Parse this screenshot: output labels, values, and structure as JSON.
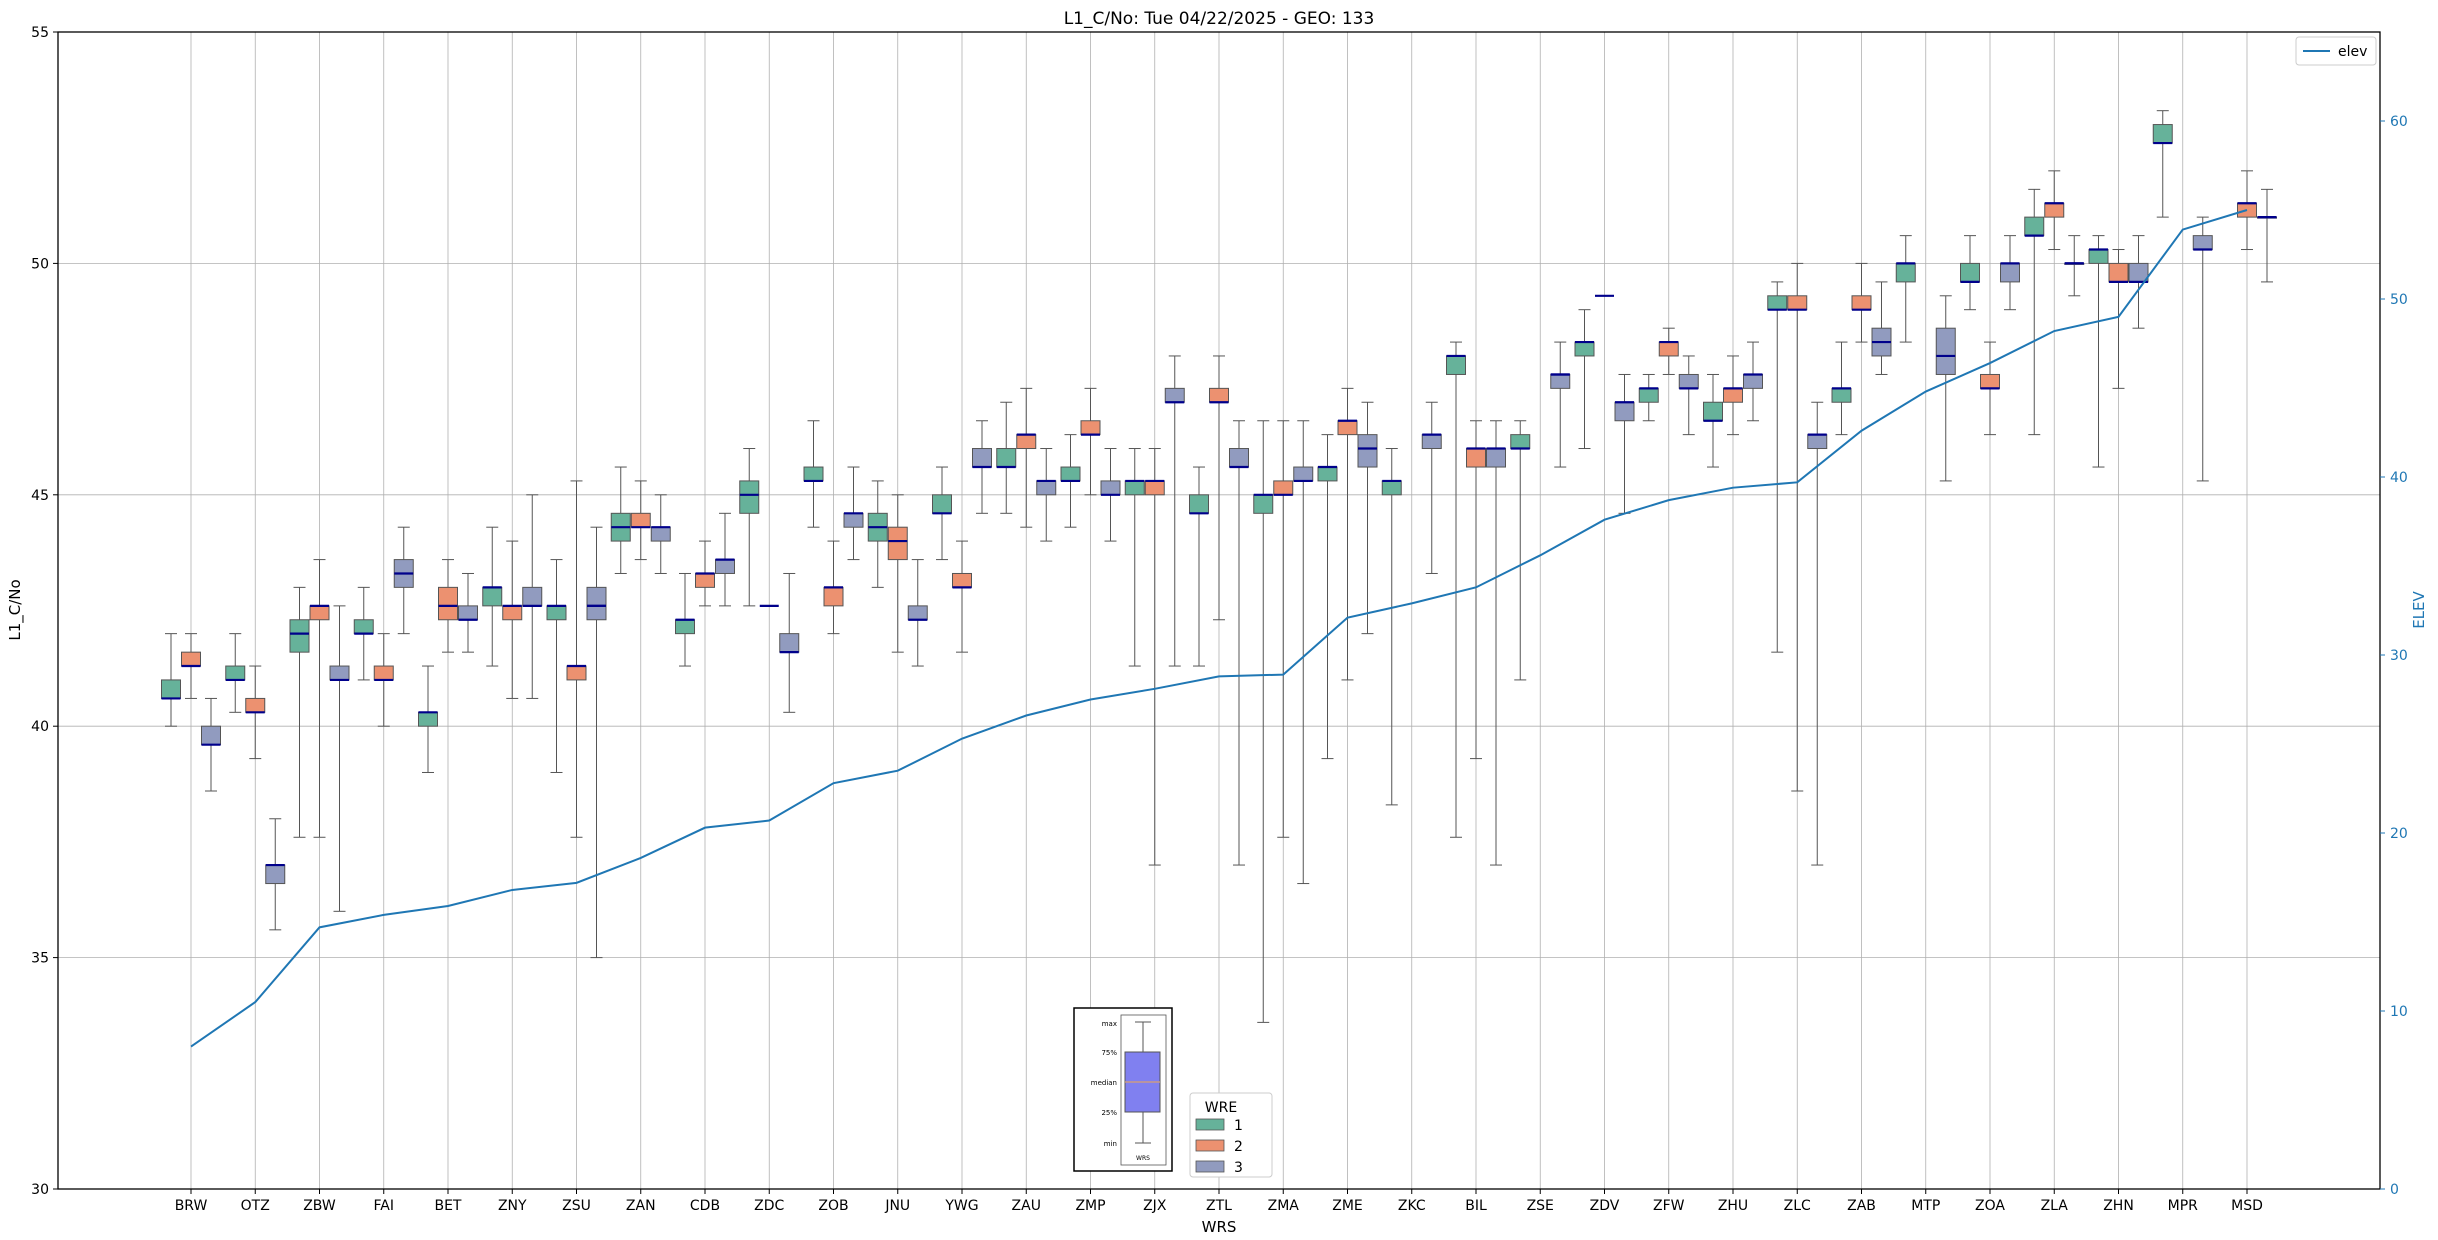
{
  "chart_data": {
    "type": "box",
    "title": "L1_C/No: Tue 04/22/2025 - GEO: 133",
    "xlabel": "WRS",
    "ylabel": "L1_C/No",
    "y2label": "ELEV",
    "ylim": [
      30,
      55
    ],
    "y2lim": [
      0,
      65
    ],
    "yticks": [
      30,
      35,
      40,
      45,
      50,
      55
    ],
    "y2ticks": [
      0,
      10,
      20,
      30,
      40,
      50,
      60
    ],
    "grid": true,
    "categories": [
      "BRW",
      "OTZ",
      "ZBW",
      "FAI",
      "BET",
      "ZNY",
      "ZSU",
      "ZAN",
      "CDB",
      "ZDC",
      "ZOB",
      "JNU",
      "YWG",
      "ZAU",
      "ZMP",
      "ZJX",
      "ZTL",
      "ZMA",
      "ZME",
      "ZKC",
      "BIL",
      "ZSE",
      "ZDV",
      "ZFW",
      "ZHU",
      "ZLC",
      "ZAB",
      "MTP",
      "ZOA",
      "ZLA",
      "ZHN",
      "MPR",
      "MSD"
    ],
    "legend": {
      "title": "WRE",
      "labels": [
        "1",
        "2",
        "3"
      ],
      "colors": [
        "#66b29a",
        "#ec9170",
        "#919bbf"
      ]
    },
    "line_legend": {
      "label": "elev",
      "color": "#1f77b4"
    },
    "box_key": {
      "labels": [
        "max",
        "75%",
        "median",
        "25%",
        "min"
      ],
      "xlabel": "WRS"
    },
    "series": [
      {
        "name": "1",
        "boxes": [
          [
            40,
            40.6,
            40.6,
            41,
            42
          ],
          [
            40.3,
            41,
            41,
            41.3,
            42
          ],
          [
            37.6,
            41.6,
            42,
            42.3,
            43
          ],
          [
            41,
            42,
            42,
            42.3,
            43
          ],
          [
            39,
            40,
            40.3,
            40.3,
            41.3
          ],
          [
            41.3,
            42.6,
            43,
            43,
            44.3
          ],
          [
            39,
            42.3,
            42.6,
            42.6,
            43.6
          ],
          [
            43.3,
            44,
            44.3,
            44.6,
            45.6
          ],
          [
            41.3,
            42,
            42.3,
            42.3,
            43.3
          ],
          [
            42.6,
            44.6,
            45,
            45.3,
            46
          ],
          [
            44.3,
            45.3,
            45.3,
            45.6,
            46.6
          ],
          [
            43,
            44,
            44.3,
            44.6,
            45.3
          ],
          [
            43.6,
            44.6,
            44.6,
            45,
            45.6
          ],
          [
            44.6,
            45.6,
            45.6,
            46,
            47
          ],
          [
            44.3,
            45.3,
            45.3,
            45.6,
            46.3
          ],
          [
            41.3,
            45,
            45.3,
            45.3,
            46
          ],
          [
            41.3,
            44.6,
            44.6,
            45,
            45.6
          ],
          [
            33.6,
            44.6,
            45,
            45,
            46.6
          ],
          [
            39.3,
            45.3,
            45.6,
            45.6,
            46.3
          ],
          [
            38.3,
            45,
            45.3,
            45.3,
            46
          ],
          [
            37.6,
            47.6,
            48,
            48,
            48.3
          ],
          [
            41,
            46,
            46,
            46.3,
            46.6
          ],
          [
            46,
            48,
            48.3,
            48.3,
            49
          ],
          [
            46.6,
            47,
            47.3,
            47.3,
            47.6
          ],
          [
            45.6,
            46.6,
            46.6,
            47,
            47.6
          ],
          [
            41.6,
            49,
            49,
            49.3,
            49.6
          ],
          [
            46.3,
            47,
            47.3,
            47.3,
            48.3
          ],
          [
            48.3,
            49.6,
            50,
            50,
            50.6
          ],
          [
            49,
            49.6,
            49.6,
            50,
            50.6
          ],
          [
            46.3,
            50.6,
            50.6,
            51,
            51.6
          ],
          [
            45.6,
            50,
            50.3,
            50.3,
            50.6
          ],
          [
            51,
            52.6,
            52.6,
            53,
            53.3
          ],
          [
            null,
            null,
            null,
            null,
            null
          ]
        ]
      },
      {
        "name": "2",
        "boxes": [
          [
            40.6,
            41.3,
            41.3,
            41.6,
            42
          ],
          [
            39.3,
            40.3,
            40.3,
            40.6,
            41.3
          ],
          [
            37.6,
            42.3,
            42.6,
            42.6,
            43.6
          ],
          [
            40,
            41,
            41,
            41.3,
            42
          ],
          [
            41.6,
            42.3,
            42.6,
            43,
            43.6
          ],
          [
            40.6,
            42.3,
            42.6,
            42.6,
            44
          ],
          [
            37.6,
            41,
            41.3,
            41.3,
            45.3
          ],
          [
            43.6,
            44.3,
            44.3,
            44.6,
            45.3
          ],
          [
            42.6,
            43,
            43.3,
            43.3,
            44
          ],
          [
            null,
            null,
            null,
            null,
            null
          ],
          [
            42,
            42.6,
            43,
            43,
            44
          ],
          [
            41.6,
            43.6,
            44,
            44.3,
            45
          ],
          [
            41.6,
            43,
            43,
            43.3,
            44
          ],
          [
            44.3,
            46,
            46.3,
            46.3,
            47.3
          ],
          [
            45,
            46.3,
            46.3,
            46.6,
            47.3
          ],
          [
            37,
            45,
            45.3,
            45.3,
            46
          ],
          [
            42.3,
            47,
            47,
            47.3,
            48
          ],
          [
            37.6,
            45,
            45,
            45.3,
            46.6
          ],
          [
            41,
            46.3,
            46.6,
            46.6,
            47.3
          ],
          [
            null,
            null,
            null,
            null,
            null
          ],
          [
            39.3,
            45.6,
            46,
            46,
            46.6
          ],
          [
            null,
            null,
            null,
            null,
            null
          ],
          [
            null,
            null,
            null,
            null,
            null
          ],
          [
            47.6,
            48,
            48.3,
            48.3,
            48.6
          ],
          [
            46.3,
            47,
            47.3,
            47.3,
            48
          ],
          [
            38.6,
            49,
            49,
            49.3,
            50
          ],
          [
            48.3,
            49,
            49,
            49.3,
            50
          ],
          [
            null,
            null,
            null,
            null,
            null
          ],
          [
            46.3,
            47.3,
            47.3,
            47.6,
            48.3
          ],
          [
            50.3,
            51,
            51.3,
            51.3,
            52
          ],
          [
            47.3,
            49.6,
            49.6,
            50,
            50.3
          ],
          [
            null,
            null,
            null,
            null,
            null
          ],
          [
            50.3,
            51,
            51.3,
            51.3,
            52
          ]
        ]
      },
      {
        "name": "3",
        "boxes": [
          [
            38.6,
            39.6,
            39.6,
            40,
            40.6
          ],
          [
            35.6,
            36.6,
            37,
            37,
            38
          ],
          [
            36,
            41,
            41,
            41.3,
            42.6
          ],
          [
            42,
            43,
            43.3,
            43.6,
            44.3
          ],
          [
            41.6,
            42.3,
            42.3,
            42.6,
            43.3
          ],
          [
            40.6,
            42.6,
            42.6,
            43,
            45
          ],
          [
            35,
            42.3,
            42.6,
            43,
            44.3
          ],
          [
            43.3,
            44,
            44.3,
            44.3,
            45
          ],
          [
            42.6,
            43.3,
            43.6,
            43.6,
            44.6
          ],
          [
            40.3,
            41.6,
            41.6,
            42,
            43.3
          ],
          [
            43.6,
            44.3,
            44.6,
            44.6,
            45.6
          ],
          [
            41.3,
            42.3,
            42.3,
            42.6,
            43.6
          ],
          [
            44.6,
            45.6,
            45.6,
            46,
            46.6
          ],
          [
            44,
            45,
            45.3,
            45.3,
            46
          ],
          [
            44,
            45,
            45,
            45.3,
            46
          ],
          [
            41.3,
            47,
            47,
            47.3,
            48
          ],
          [
            37,
            45.6,
            45.6,
            46,
            46.6
          ],
          [
            36.6,
            45.3,
            45.3,
            45.6,
            46.6
          ],
          [
            42,
            45.6,
            46,
            46.3,
            47
          ],
          [
            43.3,
            46,
            46.3,
            46.3,
            47
          ],
          [
            37,
            45.6,
            46,
            46,
            46.6
          ],
          [
            45.6,
            47.3,
            47.6,
            47.6,
            48.3
          ],
          [
            44.6,
            46.6,
            47,
            47,
            47.6
          ],
          [
            46.3,
            47.3,
            47.3,
            47.6,
            48
          ],
          [
            46.6,
            47.3,
            47.6,
            47.6,
            48.3
          ],
          [
            37,
            46,
            46.3,
            46.3,
            47
          ],
          [
            47.6,
            48,
            48.3,
            48.6,
            49.6
          ],
          [
            45.3,
            47.6,
            48,
            48.6,
            49.3
          ],
          [
            49,
            49.6,
            50,
            50,
            50.6
          ],
          [
            49.3,
            50,
            50,
            50,
            50.6
          ],
          [
            48.6,
            49.6,
            49.6,
            50,
            50.6
          ],
          [
            45.3,
            50.3,
            50.3,
            50.6,
            51
          ],
          [
            49.6,
            51,
            51,
            51,
            51.6
          ]
        ]
      }
    ],
    "singles": [
      {
        "series": "3",
        "index": 6,
        "value": 42.6,
        "note": "ZSU median line at 42.6"
      },
      {
        "series": "2",
        "index": 9,
        "value": 42.6
      },
      {
        "series": "3",
        "index": 21,
        "value": 47.6
      },
      {
        "series": "2",
        "index": 22,
        "value": 49.3
      },
      {
        "series": "3",
        "index": 29,
        "value": 50
      },
      {
        "series": "3",
        "index": 32,
        "value": 51
      }
    ],
    "elev": [
      8,
      10.5,
      14.7,
      15.4,
      15.9,
      16.8,
      17.2,
      18.6,
      20.3,
      20.7,
      22.8,
      23.5,
      25.3,
      26.6,
      27.5,
      28.1,
      28.8,
      28.9,
      32.1,
      32.9,
      33.8,
      35.6,
      37.6,
      38.7,
      39.4,
      39.7,
      42.6,
      44.8,
      46.4,
      48.2,
      49,
      53.9,
      55
    ]
  }
}
